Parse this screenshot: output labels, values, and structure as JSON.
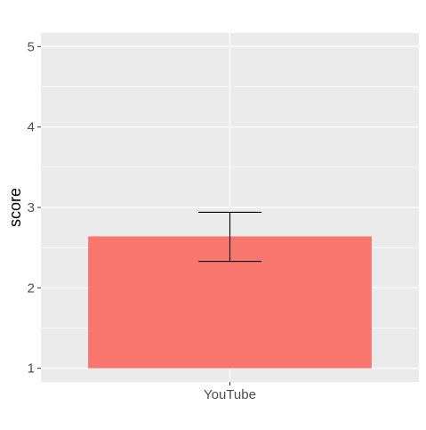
{
  "chart_data": {
    "type": "bar",
    "categories": [
      "YouTube"
    ],
    "values": [
      2.64
    ],
    "error_bars": [
      {
        "lower": 2.33,
        "upper": 2.94
      }
    ],
    "baseline": 1,
    "xlabel": "",
    "ylabel": "score",
    "ylim": [
      0.83,
      5.17
    ],
    "yticks": [
      1,
      2,
      3,
      4,
      5
    ],
    "grid": true,
    "legend": "none",
    "colors": {
      "bar": "#F8766D",
      "panel": "#EBEBEB",
      "grid": "#FFFFFF",
      "errorbar": "#000000"
    }
  }
}
